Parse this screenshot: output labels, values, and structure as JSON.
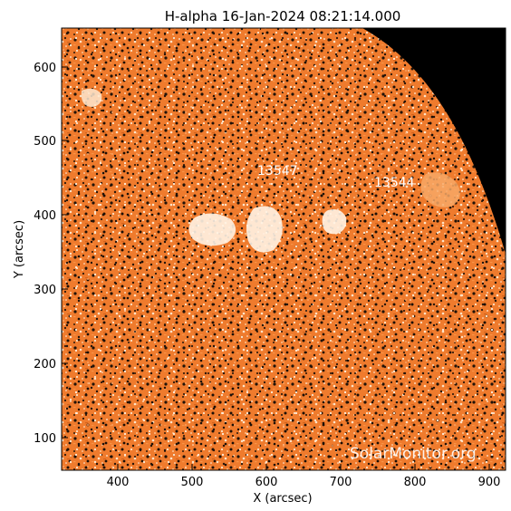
{
  "plot": {
    "title": "H-alpha 16-Jan-2024 08:21:14.000",
    "x_label": "X (arcsec)",
    "y_label": "Y (arcsec)",
    "x_ticks": [
      "400",
      "500",
      "600",
      "700",
      "800",
      "900"
    ],
    "y_ticks": [
      "100",
      "200",
      "300",
      "400",
      "500",
      "600"
    ],
    "regions": [
      "13547",
      "13544"
    ],
    "watermark": "SolarMonitor.org"
  },
  "colors": {
    "disk_base": "#f07a2a",
    "disk_bright": "#fde4c8",
    "disk_dark": "#1a0e06",
    "space": "#000000"
  }
}
